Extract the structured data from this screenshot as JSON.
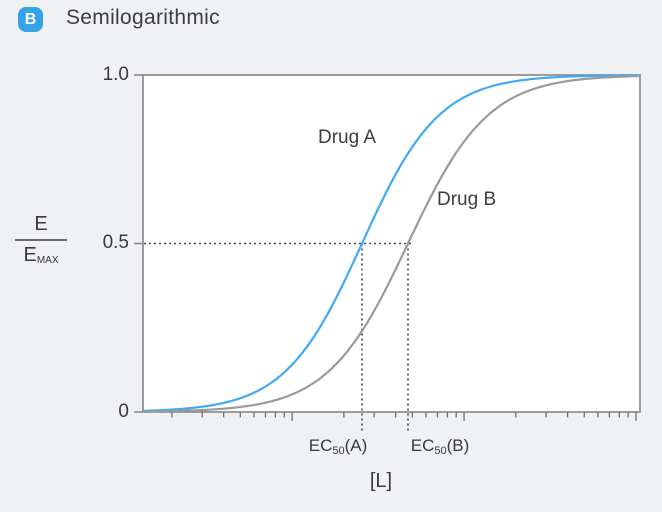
{
  "header": {
    "badge": "B",
    "badge_color": "#36a3e8",
    "title": "Semilogarithmic"
  },
  "chart_data": {
    "type": "line",
    "title": "Semilogarithmic",
    "x_scale": "log",
    "xlabel": "[L]",
    "ylabel": {
      "numerator": "E",
      "denominator": "E",
      "denominator_sub": "MAX"
    },
    "ylim": [
      0,
      1
    ],
    "yticks": [
      {
        "label": "1.0",
        "value": 1.0
      },
      {
        "label": "0.5",
        "value": 0.5
      },
      {
        "label": "0",
        "value": 0.0
      }
    ],
    "x_axis": {
      "decade_fracs": [
        -0.046,
        0.3,
        0.646,
        0.992
      ],
      "decade_width_frac": 0.346,
      "minor_multiples": [
        2,
        3,
        4,
        5,
        6,
        7,
        8,
        9
      ]
    },
    "series": [
      {
        "name": "Drug A",
        "color": "#3fa9f5",
        "ec50_frac": 0.4406,
        "steepness": 5.6,
        "max_effect": 1.0
      },
      {
        "name": "Drug B",
        "color": "#9a9a9a",
        "ec50_frac": 0.5332,
        "steepness": 5.4,
        "max_effect": 1.0
      }
    ],
    "guides": {
      "half_max_value": 0.5,
      "style": "dotted"
    },
    "annotations": [
      {
        "id": "ec50_a",
        "prefix": "EC",
        "sub": "50",
        "suffix": "(A)",
        "x_frac": 0.4406
      },
      {
        "id": "ec50_b",
        "prefix": "EC",
        "sub": "50",
        "suffix": "(B)",
        "x_frac": 0.5332
      }
    ],
    "axis_color": "#8c8c8c",
    "tick_color": "#6f6f6f",
    "guide_color": "#4a4a4a",
    "plot_background": "#ffffff"
  }
}
